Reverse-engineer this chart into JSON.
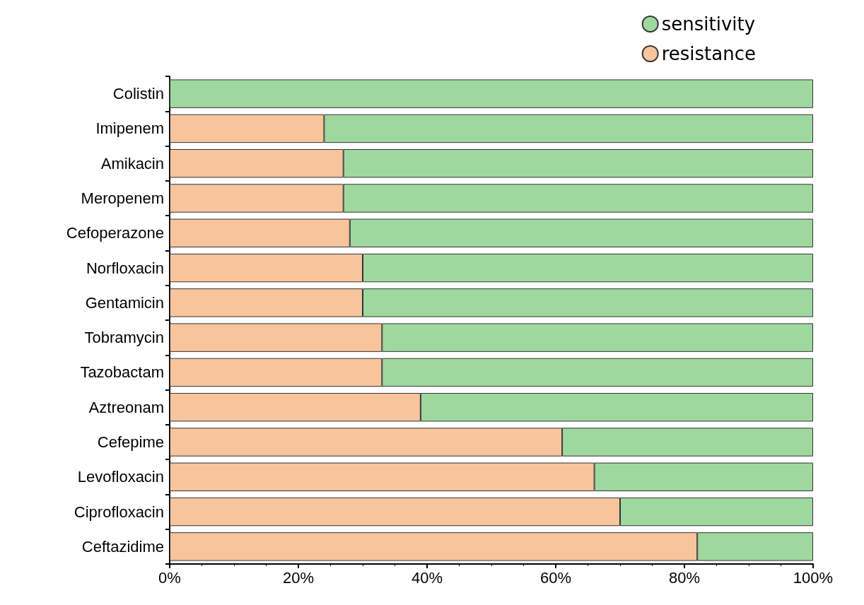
{
  "chart_data": {
    "type": "bar",
    "orientation": "horizontal",
    "stacked": true,
    "categories": [
      "Colistin",
      "Imipenem",
      "Amikacin",
      "Meropenem",
      "Cefoperazone",
      "Norfloxacin",
      "Gentamicin",
      "Tobramycin",
      "Tazobactam",
      "Aztreonam",
      "Cefepime",
      "Levofloxacin",
      "Ciprofloxacin",
      "Ceftazidime"
    ],
    "series": [
      {
        "name": "resistance",
        "color": "#f8c49c",
        "values": [
          0,
          24,
          27,
          27,
          28,
          30,
          30,
          33,
          33,
          39,
          61,
          66,
          70,
          82
        ]
      },
      {
        "name": "sensitivity",
        "color": "#9fd89f",
        "values": [
          100,
          76,
          73,
          73,
          72,
          70,
          70,
          67,
          67,
          61,
          39,
          34,
          30,
          18
        ]
      }
    ],
    "xlim": [
      0,
      100
    ],
    "xticks": [
      {
        "value": 0,
        "label": "0%"
      },
      {
        "value": 20,
        "label": "20%"
      },
      {
        "value": 40,
        "label": "40%"
      },
      {
        "value": 60,
        "label": "60%"
      },
      {
        "value": 80,
        "label": "80%"
      },
      {
        "value": 100,
        "label": "100%"
      }
    ],
    "legend": "top right"
  }
}
